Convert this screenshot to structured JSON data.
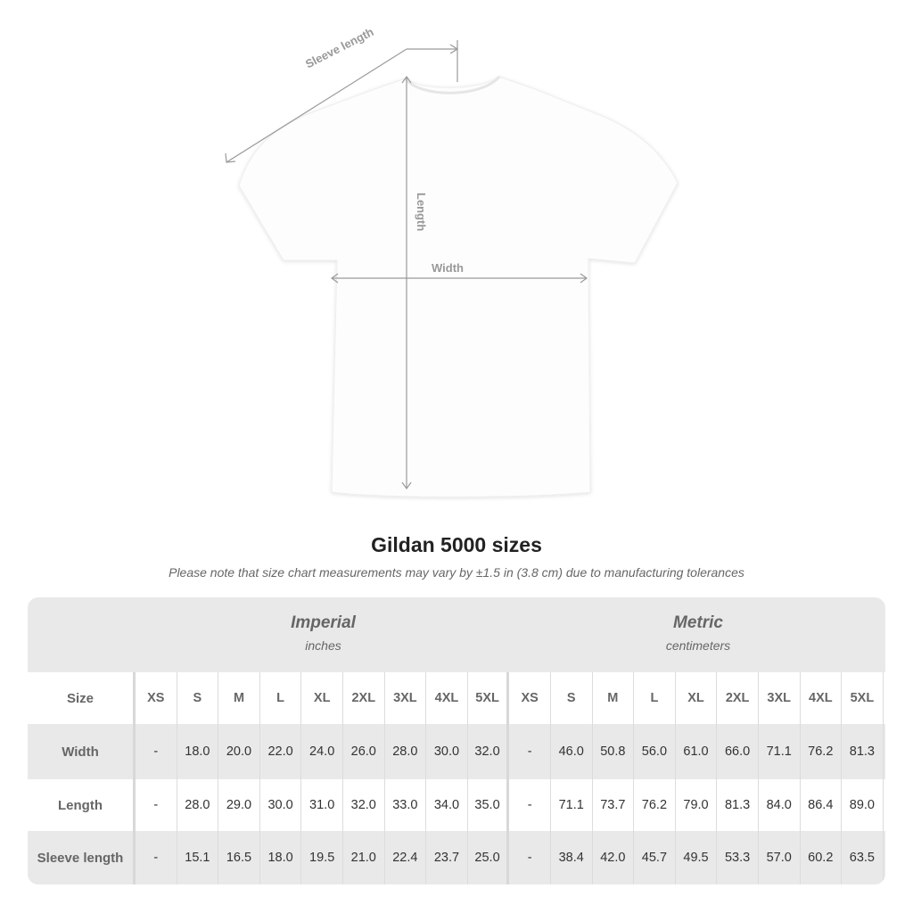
{
  "diagram": {
    "labels": {
      "sleeve": "Sleeve length",
      "length": "Length",
      "width": "Width"
    },
    "line_color": "#9a9a9a"
  },
  "title": "Gildan 5000 sizes",
  "note": "Please note that size chart measurements may vary by ±1.5 in (3.8 cm) due to manufacturing tolerances",
  "table": {
    "groups": [
      {
        "name": "Imperial",
        "unit": "inches"
      },
      {
        "name": "Metric",
        "unit": "centimeters"
      }
    ],
    "size_label": "Size",
    "sizes": [
      "XS",
      "S",
      "M",
      "L",
      "XL",
      "2XL",
      "3XL",
      "4XL",
      "5XL"
    ],
    "rows": [
      {
        "label": "Width",
        "imperial": [
          "-",
          "18.0",
          "20.0",
          "22.0",
          "24.0",
          "26.0",
          "28.0",
          "30.0",
          "32.0"
        ],
        "metric": [
          "-",
          "46.0",
          "50.8",
          "56.0",
          "61.0",
          "66.0",
          "71.1",
          "76.2",
          "81.3"
        ]
      },
      {
        "label": "Length",
        "imperial": [
          "-",
          "28.0",
          "29.0",
          "30.0",
          "31.0",
          "32.0",
          "33.0",
          "34.0",
          "35.0"
        ],
        "metric": [
          "-",
          "71.1",
          "73.7",
          "76.2",
          "79.0",
          "81.3",
          "84.0",
          "86.4",
          "89.0"
        ]
      },
      {
        "label": "Sleeve length",
        "imperial": [
          "-",
          "15.1",
          "16.5",
          "18.0",
          "19.5",
          "21.0",
          "22.4",
          "23.7",
          "25.0"
        ],
        "metric": [
          "-",
          "38.4",
          "42.0",
          "45.7",
          "49.5",
          "53.3",
          "57.0",
          "60.2",
          "63.5"
        ]
      }
    ],
    "colors": {
      "shaded": "#e9e9e9",
      "white": "#ffffff",
      "header_text": "#666666"
    }
  }
}
